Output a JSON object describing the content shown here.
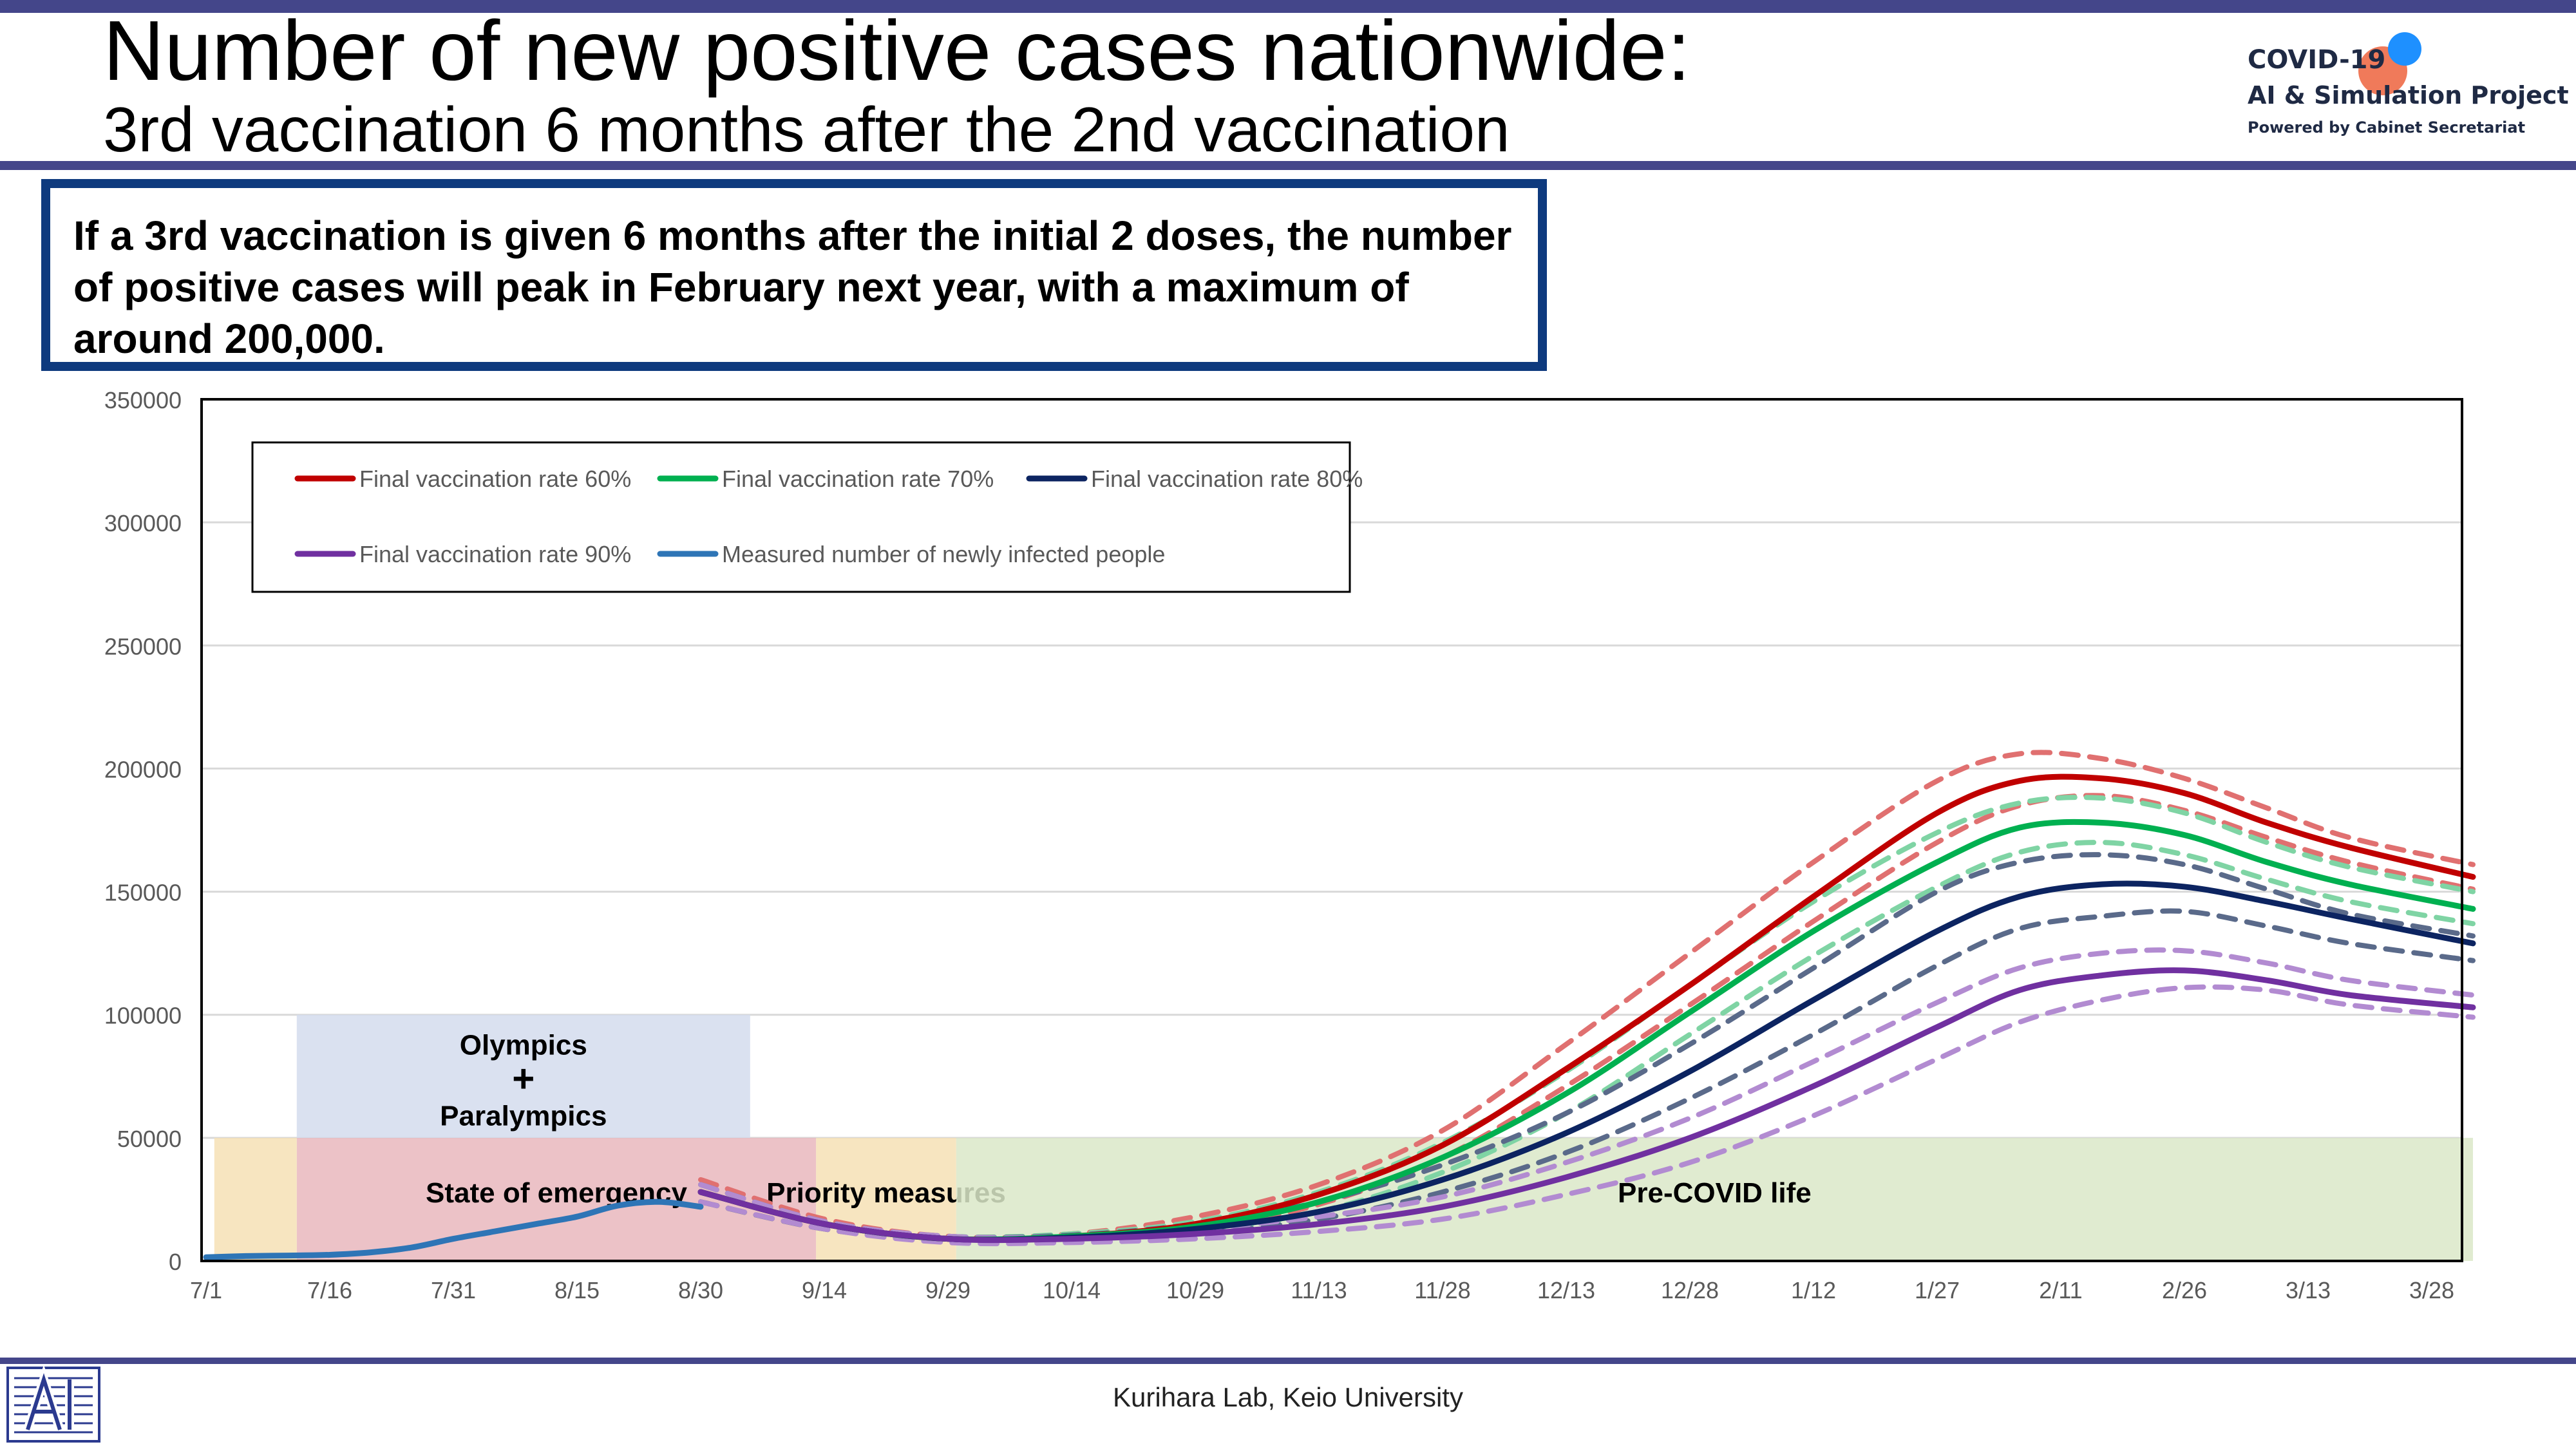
{
  "header": {
    "title": "Number of new positive cases nationwide:",
    "subtitle": "3rd vaccination 6 months after the 2nd vaccination"
  },
  "logo": {
    "line1": "COVID-19",
    "line2": "AI & Simulation Project",
    "line3": "Powered by Cabinet Secretariat"
  },
  "callout": {
    "text": "If a 3rd vaccination is given 6 months after the initial 2 doses, the number of positive cases will peak in February next year, with a maximum of around 200,000."
  },
  "footer": {
    "credit": "Kurihara Lab, Keio University"
  },
  "colors": {
    "rule": "#44468a",
    "callout_border": "#0e3a7e",
    "rate60": "#c00000",
    "rate70": "#00b050",
    "rate80": "#0c2461",
    "rate90": "#7030a0",
    "measured": "#2e75b6",
    "emergency_band": "#e9b7bd",
    "priority_band": "#f6e1b5",
    "precovid_band": "#dbe7c8",
    "olympics_band": "#d3dced"
  },
  "chart_data": {
    "type": "line",
    "x_unit": "days since 7/1",
    "xlim": [
      0,
      275
    ],
    "ylim": [
      0,
      350000
    ],
    "y_ticks": [
      0,
      50000,
      100000,
      150000,
      200000,
      250000,
      300000,
      350000
    ],
    "x_ticks": [
      {
        "day": 0,
        "label": "7/1"
      },
      {
        "day": 15,
        "label": "7/16"
      },
      {
        "day": 30,
        "label": "7/31"
      },
      {
        "day": 45,
        "label": "8/15"
      },
      {
        "day": 60,
        "label": "8/30"
      },
      {
        "day": 75,
        "label": "9/14"
      },
      {
        "day": 90,
        "label": "9/29"
      },
      {
        "day": 105,
        "label": "10/14"
      },
      {
        "day": 120,
        "label": "10/29"
      },
      {
        "day": 135,
        "label": "11/13"
      },
      {
        "day": 150,
        "label": "11/28"
      },
      {
        "day": 165,
        "label": "12/13"
      },
      {
        "day": 180,
        "label": "12/28"
      },
      {
        "day": 195,
        "label": "1/12"
      },
      {
        "day": 210,
        "label": "1/27"
      },
      {
        "day": 225,
        "label": "2/11"
      },
      {
        "day": 240,
        "label": "2/26"
      },
      {
        "day": 255,
        "label": "3/13"
      },
      {
        "day": 270,
        "label": "3/28"
      }
    ],
    "grid": true,
    "legend_position": "top-left",
    "legend": [
      {
        "name": "Final vaccination rate 60%",
        "color": "#c00000"
      },
      {
        "name": "Final vaccination rate 70%",
        "color": "#00b050"
      },
      {
        "name": "Final vaccination rate 80%",
        "color": "#0c2461"
      },
      {
        "name": "Final vaccination rate 90%",
        "color": "#7030a0"
      },
      {
        "name": "Measured number of newly infected people",
        "color": "#2e75b6"
      }
    ],
    "bands": [
      {
        "label": "State of emergency",
        "x0": 11,
        "x1": 74,
        "y0": 0,
        "y1": 50000,
        "color": "#e9b7bd"
      },
      {
        "label": "Priority measures",
        "x0": 74,
        "x1": 91,
        "y0": 0,
        "y1": 50000,
        "color": "#f6e1b5"
      },
      {
        "label": "Pre-COVID life",
        "x0": 91,
        "x1": 275,
        "y0": 0,
        "y1": 50000,
        "color": "#dbe7c8"
      },
      {
        "label": "",
        "x0": 1,
        "x1": 11,
        "y0": 0,
        "y1": 50000,
        "color": "#f6e1b5"
      },
      {
        "label": "Olympics",
        "label2": "+",
        "label3": "Paralympics",
        "x0": 11,
        "x1": 66,
        "y0": 50000,
        "y1": 100000,
        "color": "#d3dced"
      }
    ],
    "series": [
      {
        "name": "Final vaccination rate 60%",
        "color": "#c00000",
        "style": "solid",
        "x": [
          60,
          75,
          90,
          105,
          120,
          135,
          150,
          165,
          180,
          195,
          210,
          220,
          230,
          240,
          250,
          260,
          275
        ],
        "y": [
          28000,
          15000,
          9000,
          10000,
          15000,
          27000,
          47000,
          78000,
          112000,
          148000,
          182000,
          195000,
          196000,
          190000,
          178000,
          168000,
          156000
        ]
      },
      {
        "name": "Final vaccination rate 60% upper",
        "color": "#e07070",
        "style": "dashed",
        "x": [
          60,
          75,
          90,
          105,
          120,
          135,
          150,
          165,
          180,
          195,
          210,
          220,
          230,
          240,
          250,
          260,
          275
        ],
        "y": [
          33000,
          17000,
          10000,
          11000,
          18000,
          31000,
          53000,
          88000,
          125000,
          162000,
          195000,
          206000,
          204000,
          196000,
          184000,
          172000,
          161000
        ]
      },
      {
        "name": "Final vaccination rate 60% lower",
        "color": "#e07070",
        "style": "dashed",
        "x": [
          60,
          75,
          90,
          105,
          120,
          135,
          150,
          165,
          180,
          195,
          210,
          220,
          230,
          240,
          250,
          260,
          275
        ],
        "y": [
          24000,
          13000,
          8000,
          9000,
          13000,
          23000,
          42000,
          71000,
          104000,
          138000,
          170000,
          185000,
          189000,
          183000,
          172000,
          162000,
          151000
        ]
      },
      {
        "name": "Final vaccination rate 70%",
        "color": "#00b050",
        "style": "solid",
        "x": [
          60,
          75,
          90,
          105,
          120,
          135,
          150,
          165,
          180,
          195,
          210,
          220,
          230,
          240,
          250,
          260,
          275
        ],
        "y": [
          28000,
          15000,
          9000,
          10000,
          14000,
          24000,
          42000,
          68000,
          101000,
          134000,
          162000,
          176000,
          178000,
          173000,
          162000,
          153000,
          143000
        ]
      },
      {
        "name": "Final vaccination rate 70% upper",
        "color": "#7fd4a4",
        "style": "dashed",
        "x": [
          60,
          75,
          90,
          105,
          120,
          135,
          150,
          165,
          180,
          195,
          210,
          220,
          230,
          240,
          250,
          260,
          275
        ],
        "y": [
          31000,
          16000,
          10000,
          11000,
          16000,
          28000,
          48000,
          77000,
          112000,
          146000,
          174000,
          186000,
          188000,
          182000,
          170000,
          160000,
          150000
        ]
      },
      {
        "name": "Final vaccination rate 70% lower",
        "color": "#7fd4a4",
        "style": "dashed",
        "x": [
          60,
          75,
          90,
          105,
          120,
          135,
          150,
          165,
          180,
          195,
          210,
          220,
          230,
          240,
          250,
          260,
          275
        ],
        "y": [
          24000,
          13000,
          8000,
          9000,
          12000,
          20000,
          36000,
          60000,
          92000,
          124000,
          152000,
          166000,
          170000,
          165000,
          155000,
          146000,
          137000
        ]
      },
      {
        "name": "Final vaccination rate 80%",
        "color": "#0c2461",
        "style": "solid",
        "x": [
          60,
          75,
          90,
          105,
          120,
          135,
          150,
          165,
          180,
          195,
          210,
          220,
          230,
          240,
          250,
          260,
          275
        ],
        "y": [
          28000,
          15000,
          9000,
          9500,
          13000,
          20000,
          33000,
          52000,
          77000,
          106000,
          134000,
          148000,
          153000,
          152000,
          146000,
          139000,
          129000
        ]
      },
      {
        "name": "Final vaccination rate 80% upper",
        "color": "#5a6a8a",
        "style": "dashed",
        "x": [
          60,
          75,
          90,
          105,
          120,
          135,
          150,
          165,
          180,
          195,
          210,
          220,
          230,
          240,
          250,
          260,
          275
        ],
        "y": [
          31000,
          16000,
          10000,
          10500,
          15000,
          24000,
          39000,
          60000,
          88000,
          119000,
          150000,
          162000,
          165000,
          161000,
          151000,
          141000,
          132000
        ]
      },
      {
        "name": "Final vaccination rate 80% lower",
        "color": "#5a6a8a",
        "style": "dashed",
        "x": [
          60,
          75,
          90,
          105,
          120,
          135,
          150,
          165,
          180,
          195,
          210,
          220,
          230,
          240,
          250,
          260,
          275
        ],
        "y": [
          24000,
          13000,
          8000,
          8500,
          11000,
          17000,
          28000,
          44000,
          66000,
          92000,
          120000,
          135000,
          140000,
          142000,
          136000,
          129000,
          122000
        ]
      },
      {
        "name": "Final vaccination rate 90%",
        "color": "#7030a0",
        "style": "solid",
        "x": [
          60,
          75,
          90,
          105,
          120,
          135,
          150,
          165,
          180,
          195,
          210,
          220,
          230,
          240,
          250,
          260,
          275
        ],
        "y": [
          28000,
          15000,
          9000,
          9000,
          11000,
          15000,
          22000,
          34000,
          50000,
          71000,
          95000,
          110000,
          116000,
          118000,
          114000,
          108000,
          103000
        ]
      },
      {
        "name": "Final vaccination rate 90% upper",
        "color": "#b28bd1",
        "style": "dashed",
        "x": [
          60,
          75,
          90,
          105,
          120,
          135,
          150,
          165,
          180,
          195,
          210,
          220,
          230,
          240,
          250,
          260,
          275
        ],
        "y": [
          31000,
          16000,
          10000,
          10000,
          13000,
          18000,
          26000,
          40000,
          58000,
          81000,
          105000,
          119000,
          125000,
          126000,
          121000,
          114000,
          108000
        ]
      },
      {
        "name": "Final vaccination rate 90% lower",
        "color": "#b28bd1",
        "style": "dashed",
        "x": [
          60,
          75,
          90,
          105,
          120,
          135,
          150,
          165,
          180,
          195,
          210,
          220,
          230,
          240,
          250,
          260,
          275
        ],
        "y": [
          24000,
          13000,
          7500,
          7500,
          9000,
          12000,
          17000,
          27000,
          40000,
          59000,
          82000,
          97000,
          106000,
          111000,
          110000,
          104000,
          99000
        ]
      },
      {
        "name": "Measured number of newly infected people",
        "color": "#2e75b6",
        "style": "solid",
        "x": [
          0,
          5,
          10,
          15,
          20,
          25,
          30,
          35,
          40,
          45,
          50,
          55,
          60
        ],
        "y": [
          1500,
          2000,
          2200,
          2500,
          3500,
          5500,
          9000,
          12000,
          15000,
          18000,
          22500,
          24000,
          22000
        ]
      }
    ]
  }
}
